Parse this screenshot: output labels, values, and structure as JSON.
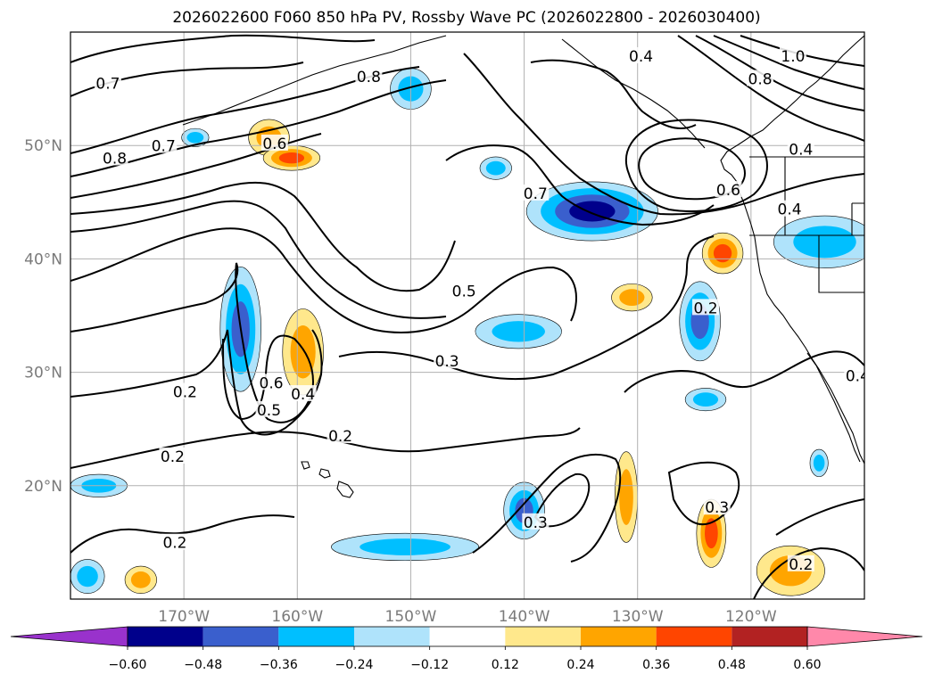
{
  "chart_data": {
    "type": "heatmap",
    "title": "2026022600 F060 850 hPa PV, Rossby Wave PC (2026022800 - 2026030400)",
    "projection": "map",
    "xlim": [
      -180,
      -110
    ],
    "ylim": [
      10,
      60
    ],
    "lon_ticks": [
      {
        "lon": -170,
        "label": "170°W"
      },
      {
        "lon": -160,
        "label": "160°W"
      },
      {
        "lon": -150,
        "label": "150°W"
      },
      {
        "lon": -140,
        "label": "140°W"
      },
      {
        "lon": -130,
        "label": "130°W"
      },
      {
        "lon": -120,
        "label": "120°W"
      }
    ],
    "lat_ticks": [
      {
        "lat": 50,
        "label": "50°N"
      },
      {
        "lat": 40,
        "label": "40°N"
      },
      {
        "lat": 30,
        "label": "30°N"
      },
      {
        "lat": 20,
        "label": "20°N"
      }
    ],
    "colorbar": {
      "levels": [
        -0.6,
        -0.48,
        -0.36,
        -0.24,
        -0.12,
        0.12,
        0.24,
        0.36,
        0.48,
        0.6
      ],
      "tick_labels": [
        "−0.60",
        "−0.48",
        "−0.36",
        "−0.24",
        "−0.12",
        "0.12",
        "0.24",
        "0.36",
        "0.48",
        "0.60"
      ],
      "colors": [
        "#9932cc",
        "#00008b",
        "#3a5fcd",
        "#00bfff",
        "#afe3fb",
        "#ffffff",
        "#ffe88c",
        "#ffa500",
        "#ff4500",
        "#b22222",
        "#ff88aa"
      ],
      "extend": "both"
    },
    "shaded_regions": [
      {
        "lon": -162.5,
        "lat": 50.7,
        "rx": 1.8,
        "ry": 1.6,
        "value": 0.3
      },
      {
        "lon": -160.5,
        "lat": 48.9,
        "rx": 2.5,
        "ry": 1.1,
        "value": 0.4
      },
      {
        "lon": -165.0,
        "lat": 33.8,
        "rx": 1.8,
        "ry": 5.5,
        "value": -0.42
      },
      {
        "lon": -159.5,
        "lat": 31.8,
        "rx": 1.8,
        "ry": 3.8,
        "value": 0.3
      },
      {
        "lon": -134.0,
        "lat": 44.2,
        "rx": 5.8,
        "ry": 2.6,
        "value": -0.55
      },
      {
        "lon": -140.5,
        "lat": 33.6,
        "rx": 3.8,
        "ry": 1.5,
        "value": -0.35
      },
      {
        "lon": -122.5,
        "lat": 40.5,
        "rx": 1.8,
        "ry": 1.8,
        "value": 0.4
      },
      {
        "lon": -124.5,
        "lat": 34.5,
        "rx": 1.8,
        "ry": 3.5,
        "value": -0.4
      },
      {
        "lon": -150.5,
        "lat": 14.6,
        "rx": 6.5,
        "ry": 1.2,
        "value": -0.3
      },
      {
        "lon": -140.0,
        "lat": 17.8,
        "rx": 1.8,
        "ry": 2.5,
        "value": -0.4
      },
      {
        "lon": -131.0,
        "lat": 19.0,
        "rx": 1.0,
        "ry": 4.0,
        "value": 0.3
      },
      {
        "lon": -123.5,
        "lat": 15.8,
        "rx": 1.3,
        "ry": 3.0,
        "value": 0.4
      },
      {
        "lon": -116.5,
        "lat": 12.5,
        "rx": 3.0,
        "ry": 2.2,
        "value": 0.3
      },
      {
        "lon": -130.5,
        "lat": 36.6,
        "rx": 1.8,
        "ry": 1.2,
        "value": 0.28
      },
      {
        "lon": -113.5,
        "lat": 41.5,
        "rx": 4.5,
        "ry": 2.3,
        "value": -0.33
      },
      {
        "lon": -173.8,
        "lat": 11.7,
        "rx": 1.4,
        "ry": 1.2,
        "value": 0.3
      },
      {
        "lon": -178.5,
        "lat": 12.0,
        "rx": 1.5,
        "ry": 1.5,
        "value": -0.35
      },
      {
        "lon": -150.0,
        "lat": 55.0,
        "rx": 1.8,
        "ry": 1.8,
        "value": -0.3
      },
      {
        "lon": -169.0,
        "lat": 50.7,
        "rx": 1.2,
        "ry": 0.8,
        "value": -0.3
      },
      {
        "lon": -142.5,
        "lat": 48.0,
        "rx": 1.4,
        "ry": 1.0,
        "value": -0.3
      },
      {
        "lon": -124.0,
        "lat": 27.6,
        "rx": 1.8,
        "ry": 1.0,
        "value": -0.3
      },
      {
        "lon": -177.5,
        "lat": 20.0,
        "rx": 2.5,
        "ry": 1.0,
        "value": -0.3
      },
      {
        "lon": -114.0,
        "lat": 22.0,
        "rx": 0.8,
        "ry": 1.2,
        "value": -0.3
      }
    ],
    "contour_labels": [
      {
        "text": "0.8",
        "lon": -153.7,
        "lat": 56.0
      },
      {
        "text": "0.7",
        "lon": -176.7,
        "lat": 55.4
      },
      {
        "text": "0.8",
        "lon": -176.1,
        "lat": 48.8
      },
      {
        "text": "0.7",
        "lon": -171.8,
        "lat": 49.9
      },
      {
        "text": "0.6",
        "lon": -162.0,
        "lat": 50.1
      },
      {
        "text": "0.4",
        "lon": -129.7,
        "lat": 57.8
      },
      {
        "text": "1.0",
        "lon": -116.3,
        "lat": 57.8
      },
      {
        "text": "0.8",
        "lon": -119.2,
        "lat": 55.8
      },
      {
        "text": "0.7",
        "lon": -139.0,
        "lat": 45.7
      },
      {
        "text": "0.6",
        "lon": -122.0,
        "lat": 46.0
      },
      {
        "text": "0.4",
        "lon": -115.6,
        "lat": 49.6
      },
      {
        "text": "0.4",
        "lon": -116.6,
        "lat": 44.3
      },
      {
        "text": "0.5",
        "lon": -145.3,
        "lat": 37.1
      },
      {
        "text": "0.2",
        "lon": -124.0,
        "lat": 35.6
      },
      {
        "text": "0.3",
        "lon": -146.8,
        "lat": 30.9
      },
      {
        "text": "0.6",
        "lon": -162.3,
        "lat": 29.0
      },
      {
        "text": "0.5",
        "lon": -162.5,
        "lat": 26.6
      },
      {
        "text": "0.4",
        "lon": -159.5,
        "lat": 28.0
      },
      {
        "text": "0.2",
        "lon": -169.9,
        "lat": 28.2
      },
      {
        "text": "0.2",
        "lon": -156.2,
        "lat": 24.3
      },
      {
        "text": "0.2",
        "lon": -171.0,
        "lat": 22.5
      },
      {
        "text": "0.2",
        "lon": -170.8,
        "lat": 14.9
      },
      {
        "text": "0.3",
        "lon": -139.0,
        "lat": 16.7
      },
      {
        "text": "0.3",
        "lon": -123.0,
        "lat": 18.0
      },
      {
        "text": "0.2",
        "lon": -115.6,
        "lat": 13.0
      },
      {
        "text": "0.4",
        "lon": -110.6,
        "lat": 29.6
      }
    ]
  }
}
